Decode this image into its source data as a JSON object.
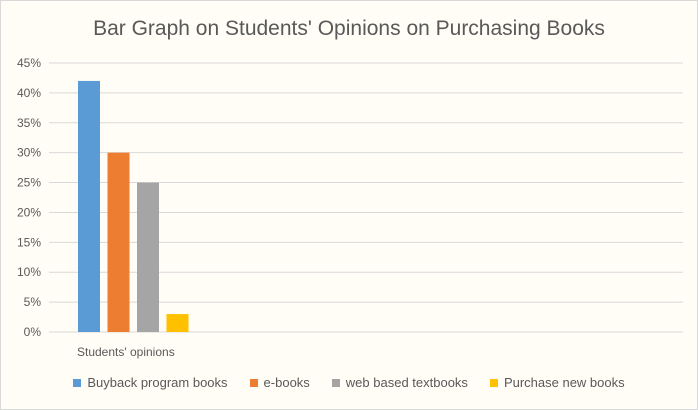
{
  "chart_data": {
    "type": "bar",
    "title": "Bar Graph on Students' Opinions on Purchasing Books",
    "categories": [
      "Students' opinions"
    ],
    "series": [
      {
        "name": "Buyback program books",
        "values": [
          42
        ],
        "color": "#5b9bd5"
      },
      {
        "name": "e-books",
        "values": [
          30
        ],
        "color": "#ed7d31"
      },
      {
        "name": "web based textbooks",
        "values": [
          25
        ],
        "color": "#a5a5a5"
      },
      {
        "name": "Purchase new books",
        "values": [
          3
        ],
        "color": "#ffc000"
      }
    ],
    "yticks": [
      "0%",
      "5%",
      "10%",
      "15%",
      "20%",
      "25%",
      "30%",
      "35%",
      "40%",
      "45%"
    ],
    "ylim": [
      0,
      45
    ],
    "grid": true,
    "legend_position": "bottom"
  }
}
